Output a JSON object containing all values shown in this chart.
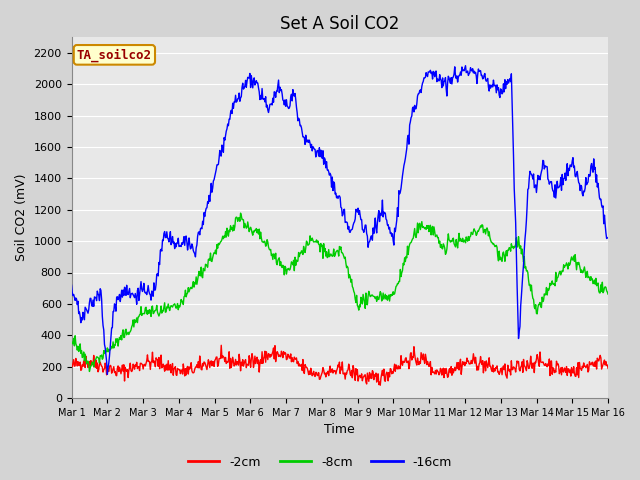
{
  "title": "Set A Soil CO2",
  "xlabel": "Time",
  "ylabel": "Soil CO2 (mV)",
  "legend_label": "TA_soilco2",
  "series_labels": [
    "-2cm",
    "-8cm",
    "-16cm"
  ],
  "series_colors": [
    "#ff0000",
    "#00cc00",
    "#0000ff"
  ],
  "ylim": [
    0,
    2300
  ],
  "yticks": [
    0,
    200,
    400,
    600,
    800,
    1000,
    1200,
    1400,
    1600,
    1800,
    2000,
    2200
  ],
  "xtick_labels": [
    "Mar 1",
    "Mar 2",
    "Mar 3",
    "Mar 4",
    "Mar 5",
    "Mar 6",
    "Mar 7",
    "Mar 8",
    "Mar 9",
    "Mar 10",
    "Mar 11",
    "Mar 12",
    "Mar 13",
    "Mar 14",
    "Mar 15",
    "Mar 16"
  ],
  "n_points": 750,
  "fig_bg_color": "#d4d4d4",
  "plot_bg_color": "#e8e8e8",
  "grid_color": "#ffffff",
  "title_fontsize": 12,
  "axis_fontsize": 9,
  "tick_fontsize": 8,
  "linewidth": 1.0
}
